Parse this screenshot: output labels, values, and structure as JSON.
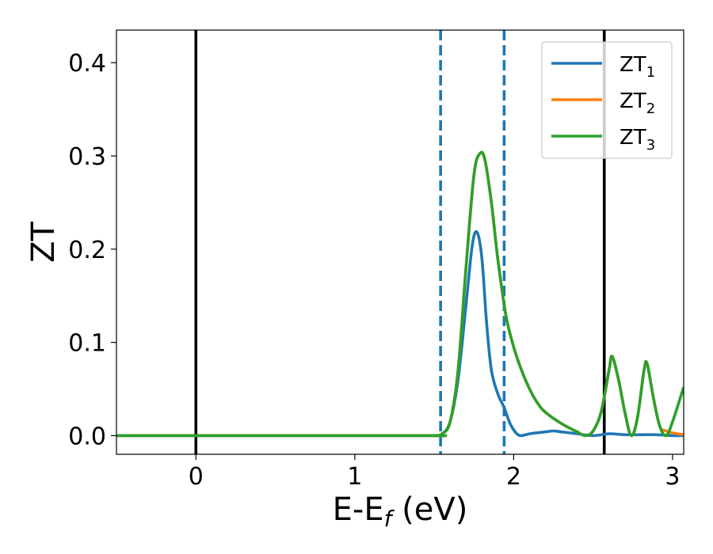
{
  "chart_data": {
    "type": "line",
    "xlabel": {
      "main": "E-E",
      "sub": "f",
      "unit": " (eV)"
    },
    "ylabel": "ZT",
    "xlim": [
      -0.5,
      3.07
    ],
    "ylim": [
      -0.02,
      0.435
    ],
    "x_ticks": [
      0,
      1,
      2,
      3
    ],
    "x_tick_labels": [
      "0",
      "1",
      "2",
      "3"
    ],
    "y_ticks": [
      0.0,
      0.1,
      0.2,
      0.3,
      0.4
    ],
    "y_tick_labels": [
      "0.0",
      "0.1",
      "0.2",
      "0.3",
      "0.4"
    ],
    "grid": false,
    "legend_position": "top-right",
    "vertical_lines": [
      {
        "x": 0.0,
        "color": "#000000",
        "style": "solid"
      },
      {
        "x": 1.54,
        "color": "#1f77b4",
        "style": "dashed"
      },
      {
        "x": 1.94,
        "color": "#1f77b4",
        "style": "dashed"
      },
      {
        "x": 2.57,
        "color": "#000000",
        "style": "solid"
      }
    ],
    "series": [
      {
        "name": "ZT",
        "name_sub": "1",
        "color": "#1f77b4",
        "x": [
          -0.5,
          1.4,
          1.5,
          1.55,
          1.6,
          1.65,
          1.7,
          1.74,
          1.77,
          1.8,
          1.83,
          1.86,
          1.9,
          1.94,
          1.98,
          2.02,
          2.05,
          2.1,
          2.2,
          2.25,
          2.3,
          2.4,
          2.5,
          2.6,
          2.7,
          2.8,
          2.9,
          3.0,
          3.07
        ],
        "y": [
          0.0,
          0.0,
          0.0,
          0.002,
          0.015,
          0.06,
          0.14,
          0.205,
          0.218,
          0.19,
          0.12,
          0.07,
          0.045,
          0.03,
          0.012,
          0.002,
          0.0,
          0.002,
          0.004,
          0.005,
          0.004,
          0.002,
          0.0,
          0.002,
          0.001,
          0.001,
          0.001,
          0.0,
          0.0
        ]
      },
      {
        "name": "ZT",
        "name_sub": "2",
        "color": "#ff7f0e",
        "x": [
          -0.5,
          1.4,
          1.5,
          1.55,
          1.6,
          1.65,
          1.7,
          1.75,
          1.79,
          1.82,
          1.86,
          1.9,
          1.95,
          2.0,
          2.05,
          2.1,
          2.15,
          2.2,
          2.3,
          2.4,
          2.45,
          2.5,
          2.55,
          2.6,
          2.62,
          2.66,
          2.7,
          2.74,
          2.78,
          2.82,
          2.84,
          2.88,
          2.92,
          2.96,
          3.0,
          3.07
        ],
        "y": [
          0.0,
          0.0,
          0.0,
          0.002,
          0.015,
          0.07,
          0.18,
          0.28,
          0.303,
          0.295,
          0.25,
          0.19,
          0.13,
          0.095,
          0.07,
          0.05,
          0.035,
          0.025,
          0.013,
          0.004,
          0.0,
          0.005,
          0.025,
          0.07,
          0.085,
          0.06,
          0.025,
          0.0,
          0.02,
          0.07,
          0.077,
          0.04,
          0.01,
          0.005,
          0.003,
          0.001
        ]
      },
      {
        "name": "ZT",
        "name_sub": "3",
        "color": "#2ca02c",
        "x": [
          -0.5,
          1.4,
          1.5,
          1.55,
          1.6,
          1.65,
          1.7,
          1.75,
          1.79,
          1.82,
          1.86,
          1.9,
          1.95,
          2.0,
          2.05,
          2.1,
          2.15,
          2.2,
          2.3,
          2.4,
          2.45,
          2.5,
          2.55,
          2.6,
          2.62,
          2.66,
          2.7,
          2.74,
          2.78,
          2.82,
          2.84,
          2.88,
          2.92,
          2.96,
          3.0,
          3.07
        ],
        "y": [
          0.0,
          0.0,
          0.0,
          0.002,
          0.015,
          0.07,
          0.18,
          0.28,
          0.303,
          0.295,
          0.25,
          0.19,
          0.13,
          0.095,
          0.07,
          0.05,
          0.035,
          0.025,
          0.013,
          0.004,
          0.0,
          0.005,
          0.025,
          0.07,
          0.085,
          0.06,
          0.025,
          0.0,
          0.02,
          0.07,
          0.077,
          0.04,
          0.01,
          0.0,
          0.015,
          0.052
        ]
      }
    ]
  }
}
